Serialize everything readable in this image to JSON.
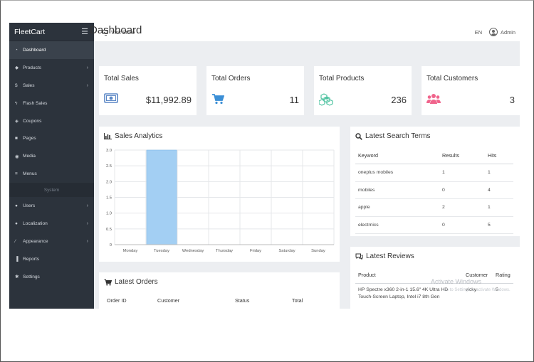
{
  "sidebar": {
    "brand": "FleetCart",
    "items": [
      {
        "label": "Dashboard",
        "icon": "dashboard-icon",
        "active": true,
        "chevron": false
      },
      {
        "label": "Products",
        "icon": "cube-icon",
        "active": false,
        "chevron": true
      },
      {
        "label": "Sales",
        "icon": "dollar-icon",
        "active": false,
        "chevron": true
      },
      {
        "label": "Flash Sales",
        "icon": "bolt-icon",
        "active": false,
        "chevron": false
      },
      {
        "label": "Coupons",
        "icon": "tag-icon",
        "active": false,
        "chevron": false
      },
      {
        "label": "Pages",
        "icon": "file-icon",
        "active": false,
        "chevron": false
      },
      {
        "label": "Media",
        "icon": "camera-icon",
        "active": false,
        "chevron": false
      },
      {
        "label": "Menus",
        "icon": "bars-icon",
        "active": false,
        "chevron": false
      }
    ],
    "section_label": "System",
    "system_items": [
      {
        "label": "Users",
        "icon": "users-icon",
        "chevron": true
      },
      {
        "label": "Localization",
        "icon": "globe-icon",
        "chevron": true
      },
      {
        "label": "Appearance",
        "icon": "brush-icon",
        "chevron": true
      },
      {
        "label": "Reports",
        "icon": "bar-chart-icon",
        "chevron": false
      },
      {
        "label": "Settings",
        "icon": "cogs-icon",
        "chevron": false
      }
    ]
  },
  "topbar": {
    "visit_store": "Visit Store",
    "language": "EN",
    "user": "Admin"
  },
  "page_title": "Dashboard",
  "stats": {
    "sales": {
      "label": "Total Sales",
      "value": "$11,992.89",
      "color": "#5b87c5"
    },
    "orders": {
      "label": "Total Orders",
      "value": "11",
      "color": "#3b8fd6"
    },
    "products": {
      "label": "Total Products",
      "value": "236",
      "color": "#4fc3a1"
    },
    "customers": {
      "label": "Total Customers",
      "value": "3",
      "color": "#f0648c"
    }
  },
  "sales_analytics": {
    "title": "Sales Analytics"
  },
  "chart_data": {
    "type": "bar",
    "title": "",
    "categories": [
      "Monday",
      "Tuesday",
      "Wednesday",
      "Thursday",
      "Friday",
      "Saturday",
      "Sunday"
    ],
    "values": [
      0,
      3.0,
      0,
      0,
      0,
      0,
      0
    ],
    "ylim": [
      0,
      3.0
    ],
    "yticks": [
      "0",
      "0.5",
      "1.0",
      "1.5",
      "2.0",
      "2.5",
      "3.0"
    ],
    "grid": true,
    "bar_color": "#a3cff3"
  },
  "latest_orders": {
    "title": "Latest Orders",
    "columns": [
      "Order ID",
      "Customer",
      "Status",
      "Total"
    ]
  },
  "latest_search_terms": {
    "title": "Latest Search Terms",
    "columns": [
      "Keyword",
      "Results",
      "Hits"
    ],
    "rows": [
      {
        "keyword": "oneplus mobiles",
        "results": "1",
        "hits": "1"
      },
      {
        "keyword": "mobiles",
        "results": "0",
        "hits": "4"
      },
      {
        "keyword": "apple",
        "results": "2",
        "hits": "1"
      },
      {
        "keyword": "electrnics",
        "results": "0",
        "hits": "5"
      }
    ]
  },
  "latest_reviews": {
    "title": "Latest Reviews",
    "columns": [
      "Product",
      "Customer",
      "Rating"
    ],
    "rows": [
      {
        "product": "HP Spectre x360 2-in-1 15.6\" 4K Ultra HD Touch-Screen Laptop, Intel i7 8th Gen",
        "customer": "vicky",
        "rating": "5"
      }
    ]
  },
  "watermark": {
    "line1": "Activate Windows",
    "line2": "Go to Settings to activate Windows."
  }
}
